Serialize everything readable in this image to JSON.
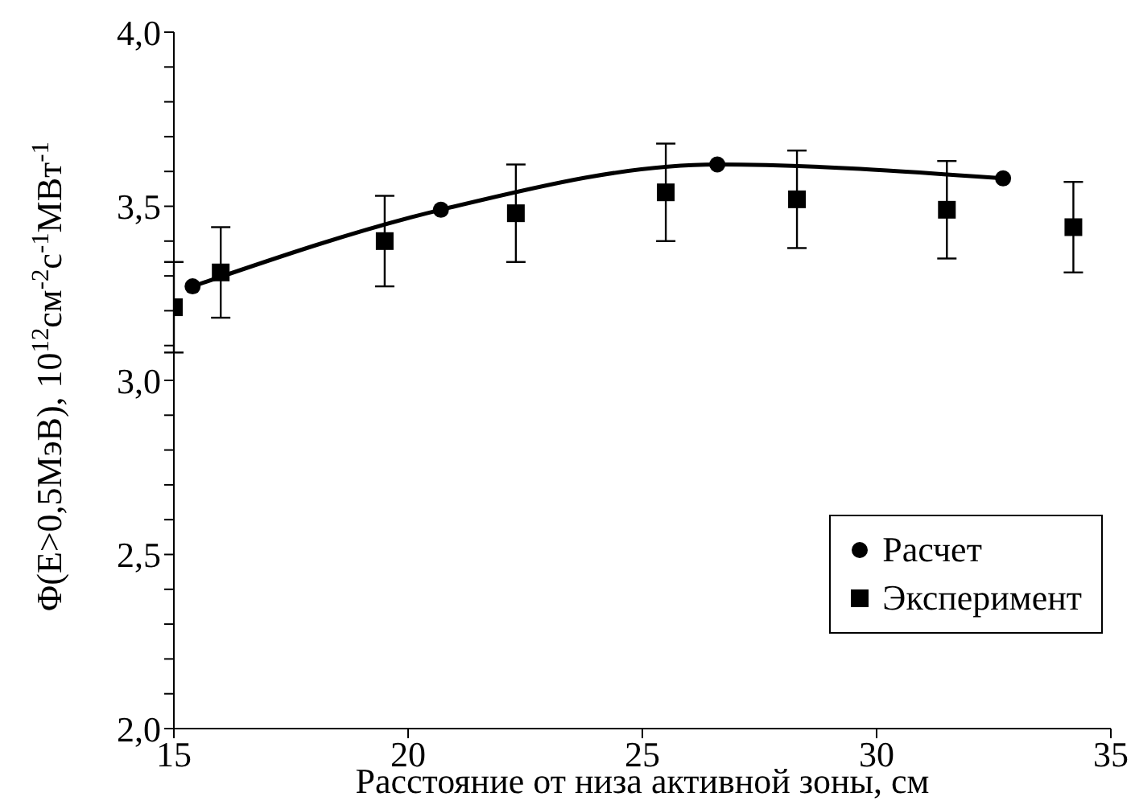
{
  "chart_data": {
    "type": "line",
    "xlabel": "Расстояние от низа активной зоны, см",
    "ylabel": "Φ(E>0,5МэВ), 10$^{12}$см$^{-2}$с$^{-1}$МВт$^{-1}$",
    "xlim": [
      15,
      35
    ],
    "xticks": [
      15,
      20,
      25,
      30,
      35
    ],
    "ylim": [
      2.0,
      4.0
    ],
    "yticks": [
      {
        "value": 2.0,
        "label": "2,0"
      },
      {
        "value": 2.1,
        "label": null
      },
      {
        "value": 2.2,
        "label": null
      },
      {
        "value": 2.3,
        "label": null
      },
      {
        "value": 2.4,
        "label": null
      },
      {
        "value": 2.5,
        "label": "2,5"
      },
      {
        "value": 2.6,
        "label": null
      },
      {
        "value": 2.7,
        "label": null
      },
      {
        "value": 2.8,
        "label": null
      },
      {
        "value": 2.9,
        "label": null
      },
      {
        "value": 3.0,
        "label": "3,0"
      },
      {
        "value": 3.1,
        "label": null
      },
      {
        "value": 3.2,
        "label": null
      },
      {
        "value": 3.3,
        "label": null
      },
      {
        "value": 3.4,
        "label": null
      },
      {
        "value": 3.5,
        "label": "3,5"
      },
      {
        "value": 3.6,
        "label": null
      },
      {
        "value": 3.7,
        "label": null
      },
      {
        "value": 3.8,
        "label": null
      },
      {
        "value": 3.9,
        "label": null
      },
      {
        "value": 4.0,
        "label": "4,0"
      }
    ],
    "grid": false,
    "legend": "bottom right",
    "series": [
      {
        "name": "Расчет",
        "marker": "circle",
        "color": "#000000",
        "x": [
          15.4,
          20.7,
          26.6,
          32.7
        ],
        "values": [
          3.27,
          3.49,
          3.62,
          3.58
        ]
      },
      {
        "name": "Эксперимент",
        "type": "scatter",
        "marker": "square",
        "color": "#000000",
        "x": [
          15.0,
          16.0,
          19.5,
          22.3,
          25.5,
          28.3,
          31.5,
          34.2
        ],
        "values": [
          3.21,
          3.31,
          3.4,
          3.48,
          3.54,
          3.52,
          3.49,
          3.44
        ],
        "errors": [
          0.13,
          0.13,
          0.13,
          0.14,
          0.14,
          0.14,
          0.14,
          0.13
        ]
      }
    ]
  }
}
